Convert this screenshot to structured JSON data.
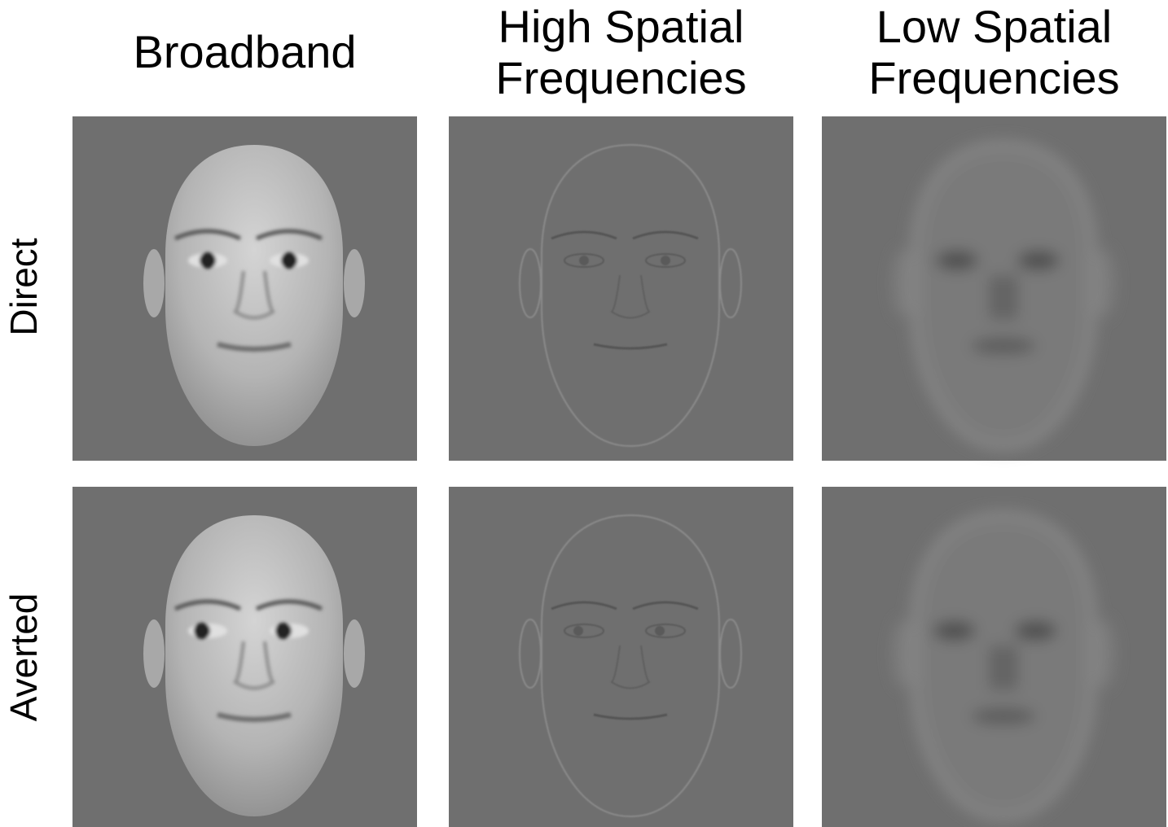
{
  "columns": [
    {
      "lines": [
        "Broadband"
      ]
    },
    {
      "lines": [
        "High Spatial",
        "Frequencies"
      ]
    },
    {
      "lines": [
        "Low Spatial",
        "Frequencies"
      ]
    }
  ],
  "rows": [
    "Direct",
    "Averted"
  ]
}
